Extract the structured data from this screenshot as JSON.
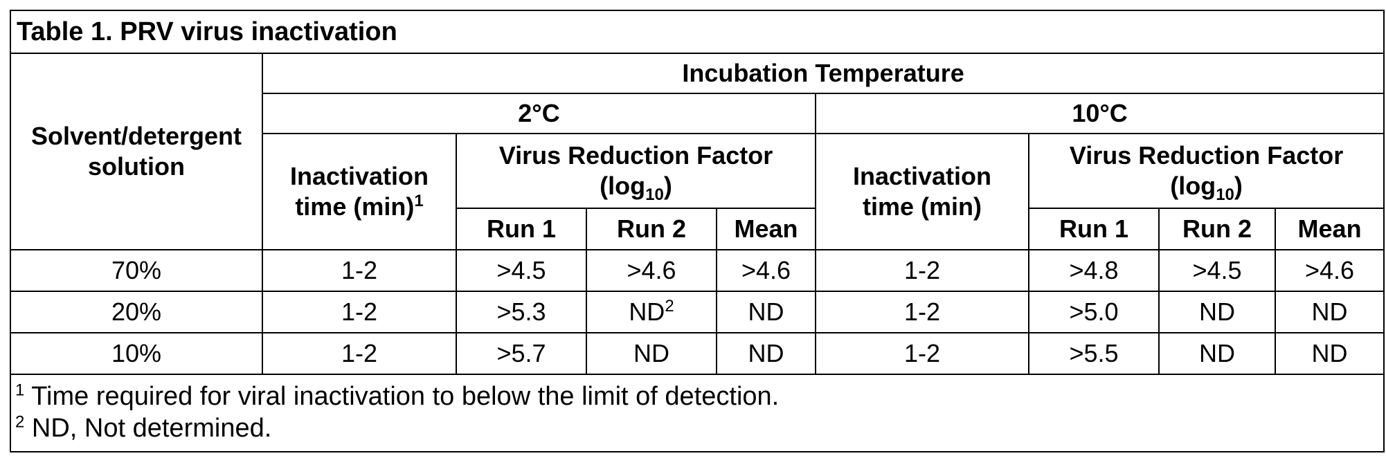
{
  "table": {
    "title": "Table 1. PRV virus inactivation",
    "header": {
      "solvent_col": "Solvent/detergent solution",
      "incubation": "Incubation Temperature",
      "temp_2": "2°C",
      "temp_10": "10°C",
      "inact_time_2": "Inactivation time (min)",
      "inact_time_2_footnote": "1",
      "inact_time_10": "Inactivation time (min)",
      "vrf_line1": "Virus Reduction Factor",
      "vrf_line2_prefix": "(log",
      "vrf_line2_sub": "10",
      "vrf_line2_suffix": ")",
      "run1": "Run 1",
      "run2": "Run 2",
      "mean": "Mean"
    },
    "rows": [
      {
        "solution": "70%",
        "t2_time": "1-2",
        "t2_run1": ">4.5",
        "t2_run2": ">4.6",
        "t2_run2_sup": "",
        "t2_mean": ">4.6",
        "t10_time": "1-2",
        "t10_run1": ">4.8",
        "t10_run2": ">4.5",
        "t10_mean": ">4.6"
      },
      {
        "solution": "20%",
        "t2_time": "1-2",
        "t2_run1": ">5.3",
        "t2_run2": "ND",
        "t2_run2_sup": "2",
        "t2_mean": "ND",
        "t10_time": "1-2",
        "t10_run1": ">5.0",
        "t10_run2": "ND",
        "t10_mean": "ND"
      },
      {
        "solution": "10%",
        "t2_time": "1-2",
        "t2_run1": ">5.7",
        "t2_run2": "ND",
        "t2_run2_sup": "",
        "t2_mean": "ND",
        "t10_time": "1-2",
        "t10_run1": ">5.5",
        "t10_run2": "ND",
        "t10_mean": "ND"
      }
    ],
    "footnotes": [
      {
        "mark": "1",
        "text": " Time required for viral inactivation to below the limit of detection."
      },
      {
        "mark": "2",
        "text": " ND, Not determined."
      }
    ]
  }
}
